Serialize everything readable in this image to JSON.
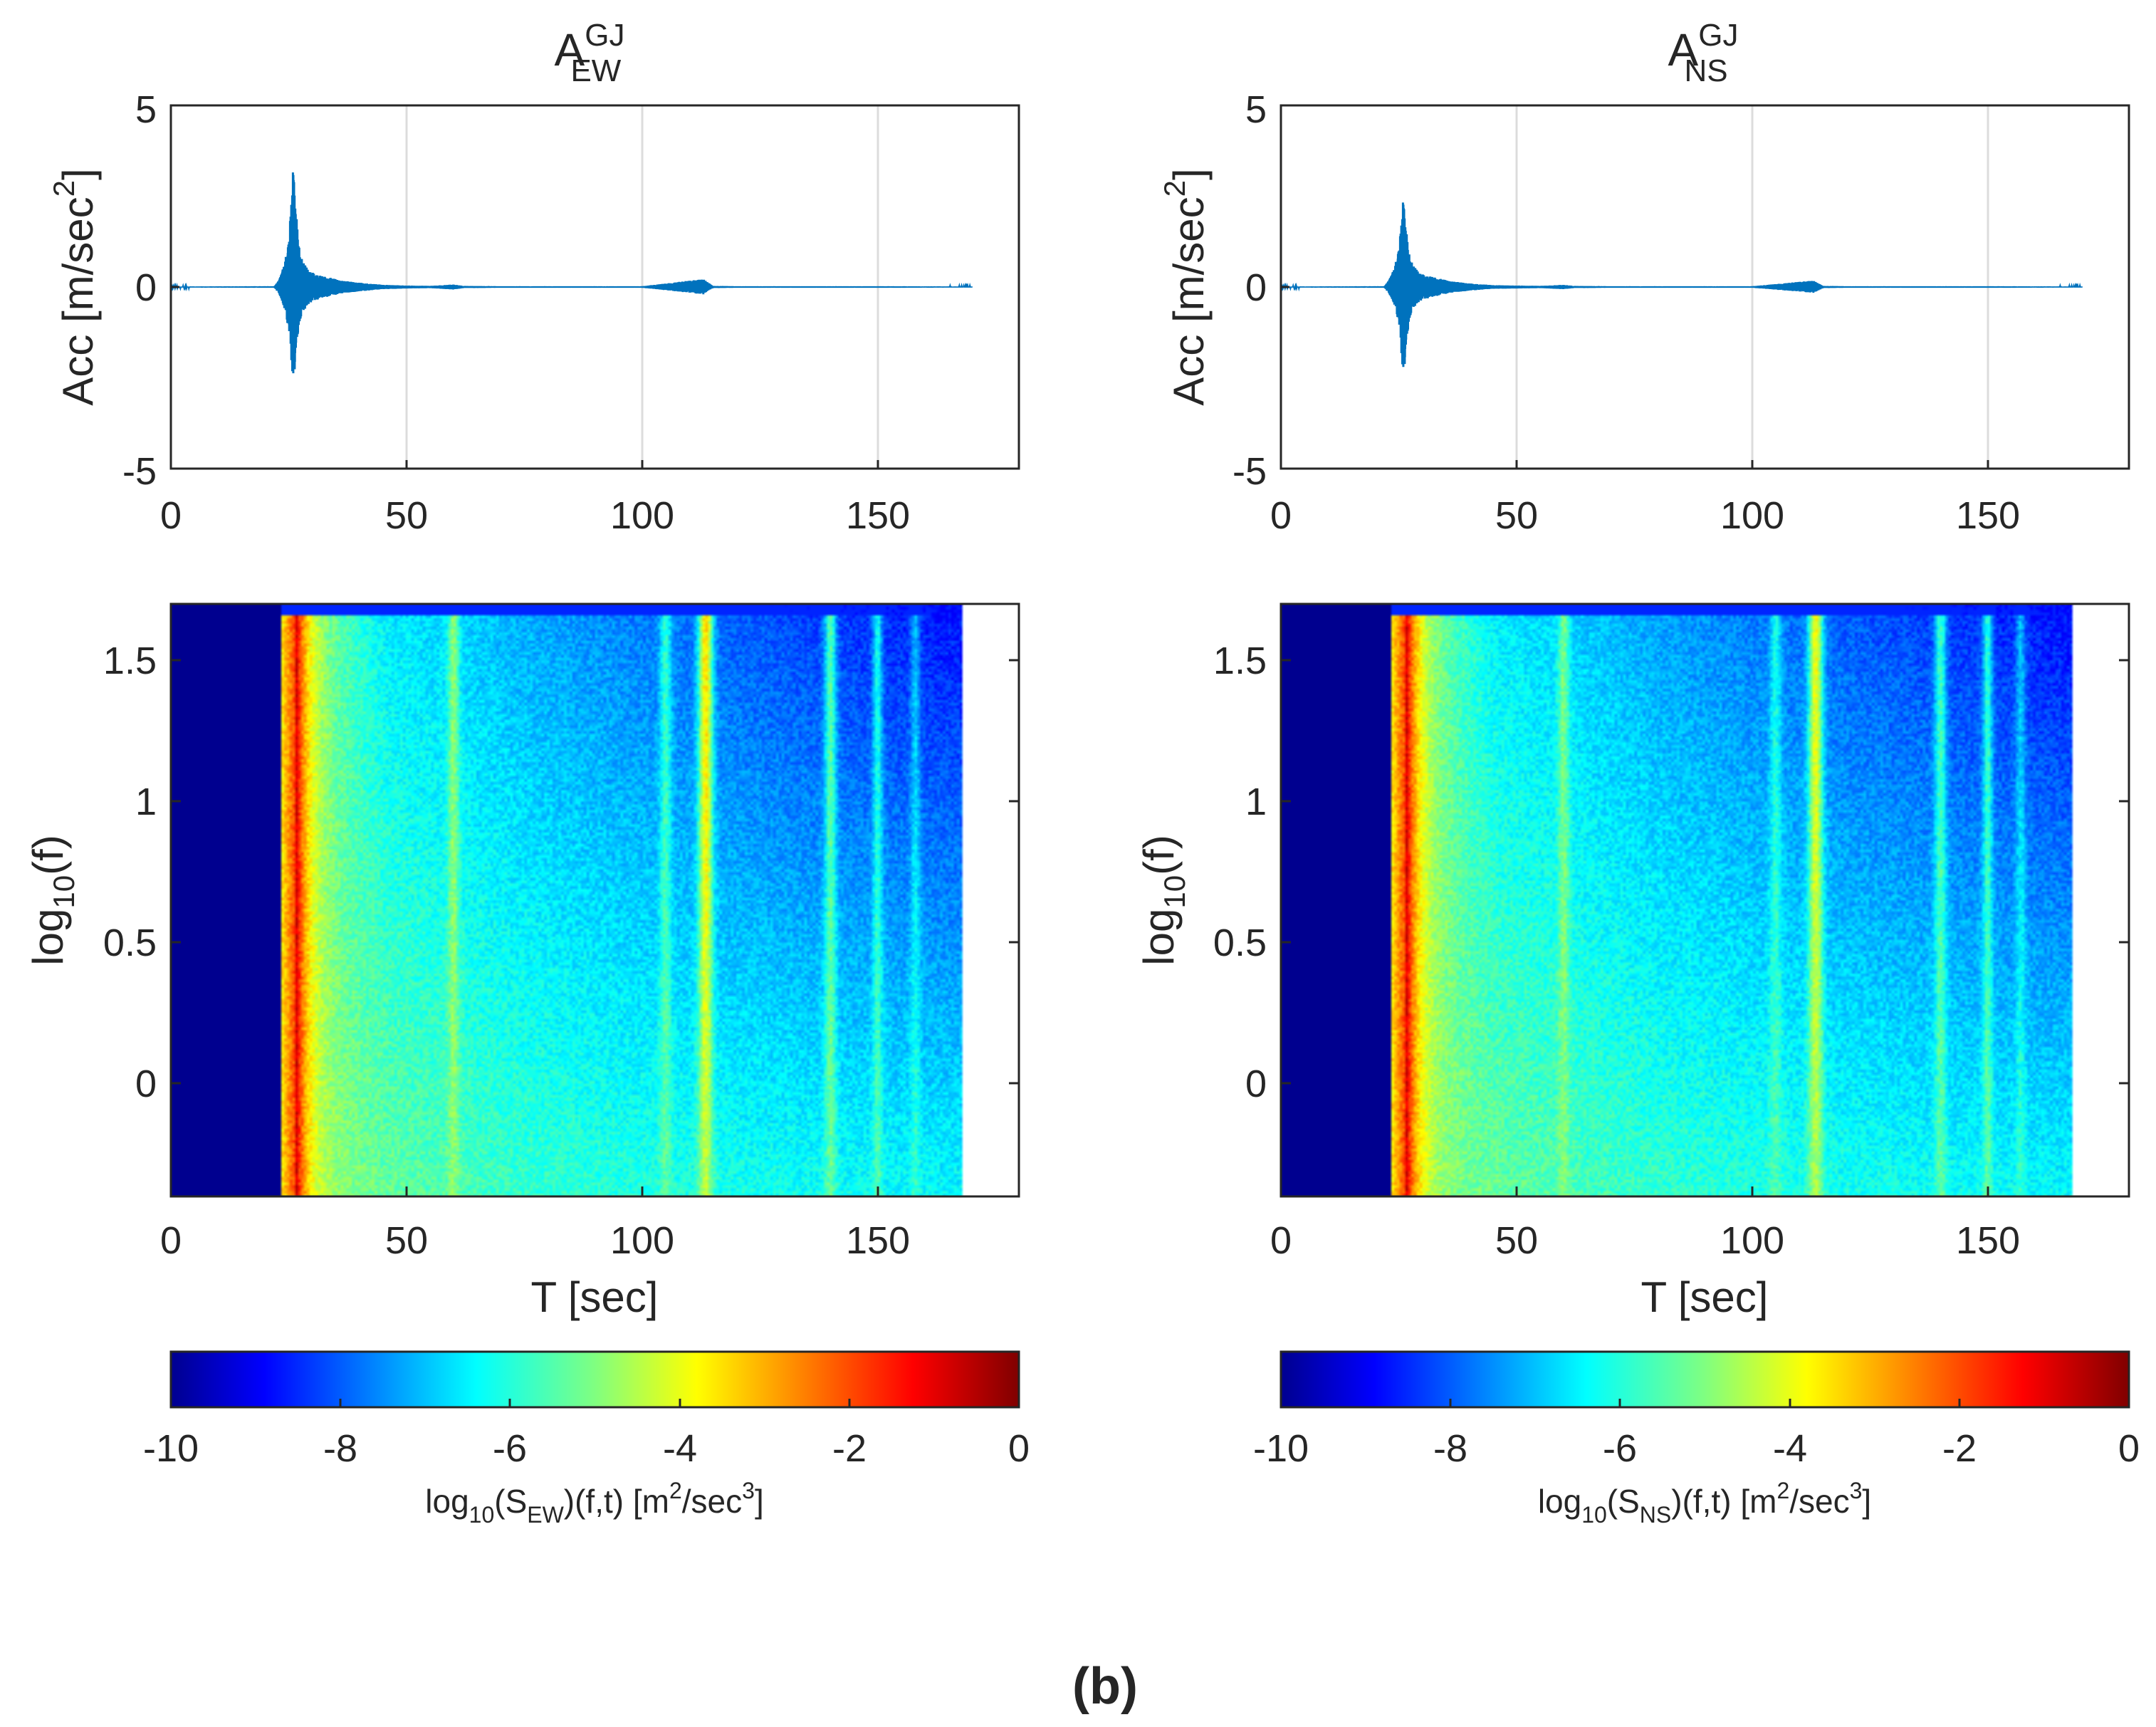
{
  "figure": {
    "panel_label": "(b)"
  },
  "colors": {
    "trace": "#0072BD",
    "axis": "#262626",
    "grid": "#dcdcdc",
    "colormap": [
      "#00008F",
      "#0000FF",
      "#0080FF",
      "#00FFFF",
      "#80FF80",
      "#FFFF00",
      "#FF8000",
      "#FF0000",
      "#800000"
    ]
  },
  "chart_data": [
    {
      "id": "acc-ew",
      "type": "line",
      "title": {
        "main": "A",
        "sup": "GJ",
        "sub": "EW"
      },
      "ylabel": {
        "prefix": "Acc [m/sec",
        "sup": "2",
        "suffix": "]"
      },
      "xlim": [
        0,
        180
      ],
      "ylim": [
        -5,
        5
      ],
      "xticks": [
        "0",
        "50",
        "100",
        "150"
      ],
      "xtick_values": [
        0,
        50,
        100,
        150
      ],
      "yticks": [
        "-5",
        "0",
        "5"
      ],
      "ytick_values": [
        -5,
        0,
        5
      ],
      "grid": "x",
      "series": [
        {
          "name": "EW acceleration",
          "t": [
            0,
            22,
            23,
            24,
            25,
            25.5,
            26,
            26.5,
            27,
            27.5,
            28,
            29,
            30,
            32,
            34,
            36,
            40,
            45,
            50,
            55,
            60,
            62,
            70,
            100,
            113,
            114,
            115,
            120,
            150,
            170
          ],
          "upper": [
            0.01,
            0.02,
            0.2,
            0.6,
            1.2,
            2.4,
            3.4,
            2.2,
            1.4,
            0.9,
            0.7,
            0.5,
            0.4,
            0.3,
            0.25,
            0.18,
            0.12,
            0.06,
            0.04,
            0.03,
            0.07,
            0.03,
            0.02,
            0.02,
            0.22,
            0.12,
            0.03,
            0.02,
            0.02,
            0.01
          ],
          "lower": [
            -0.01,
            -0.02,
            -0.2,
            -0.6,
            -1.2,
            -2.0,
            -2.8,
            -1.9,
            -1.2,
            -0.9,
            -0.7,
            -0.5,
            -0.4,
            -0.3,
            -0.25,
            -0.18,
            -0.12,
            -0.06,
            -0.04,
            -0.03,
            -0.07,
            -0.03,
            -0.02,
            -0.02,
            -0.2,
            -0.1,
            -0.03,
            -0.02,
            -0.02,
            -0.01
          ]
        }
      ]
    },
    {
      "id": "acc-ns",
      "type": "line",
      "title": {
        "main": "A",
        "sup": "GJ",
        "sub": "NS"
      },
      "ylabel": {
        "prefix": "Acc [m/sec",
        "sup": "2",
        "suffix": "]"
      },
      "xlim": [
        0,
        180
      ],
      "ylim": [
        -5,
        5
      ],
      "xticks": [
        "0",
        "50",
        "100",
        "150"
      ],
      "xtick_values": [
        0,
        50,
        100,
        150
      ],
      "yticks": [
        "-5",
        "0",
        "5"
      ],
      "ytick_values": [
        -5,
        0,
        5
      ],
      "grid": "x",
      "series": [
        {
          "name": "NS acceleration",
          "t": [
            0,
            22,
            23,
            24,
            25,
            25.5,
            26,
            26.5,
            27,
            27.5,
            28,
            29,
            30,
            32,
            34,
            36,
            40,
            45,
            50,
            55,
            60,
            62,
            70,
            100,
            113,
            114,
            115,
            120,
            150,
            170
          ],
          "upper": [
            0.01,
            0.02,
            0.2,
            0.5,
            1.0,
            1.8,
            2.5,
            1.7,
            1.1,
            0.8,
            0.6,
            0.45,
            0.35,
            0.28,
            0.22,
            0.16,
            0.1,
            0.05,
            0.04,
            0.03,
            0.06,
            0.03,
            0.02,
            0.02,
            0.18,
            0.1,
            0.03,
            0.02,
            0.02,
            0.01
          ],
          "lower": [
            -0.01,
            -0.02,
            -0.2,
            -0.5,
            -1.0,
            -1.8,
            -2.6,
            -1.8,
            -1.1,
            -0.8,
            -0.6,
            -0.45,
            -0.35,
            -0.28,
            -0.22,
            -0.16,
            -0.1,
            -0.05,
            -0.04,
            -0.03,
            -0.06,
            -0.03,
            -0.02,
            -0.02,
            -0.16,
            -0.1,
            -0.03,
            -0.02,
            -0.02,
            -0.01
          ]
        }
      ]
    },
    {
      "id": "spec-ew",
      "type": "heatmap",
      "xlabel": "T [sec]",
      "ylabel": {
        "prefix": "log",
        "sub": "10",
        "suffix": "(f)"
      },
      "xlim": [
        0,
        180
      ],
      "ylim": [
        -0.4,
        1.7
      ],
      "xticks": [
        "0",
        "50",
        "100",
        "150"
      ],
      "xtick_values": [
        0,
        50,
        100,
        150
      ],
      "yticks": [
        "0",
        "0.5",
        "1",
        "1.5"
      ],
      "ytick_values": [
        0,
        0.5,
        1,
        1.5
      ],
      "data_range_t": [
        1.5,
        168
      ],
      "onset_t": 23.5,
      "peak_t": 26.5,
      "clim": [
        -10,
        0
      ],
      "features": [
        {
          "t": 113.5,
          "strength": 0.45,
          "width": 1.5
        },
        {
          "t": 105,
          "strength": 0.18,
          "width": 1.2
        },
        {
          "t": 60,
          "strength": 0.18,
          "width": 1.2
        },
        {
          "t": 140,
          "strength": 0.28,
          "width": 1.2
        },
        {
          "t": 150,
          "strength": 0.22,
          "width": 1.0
        },
        {
          "t": 158,
          "strength": 0.15,
          "width": 1.0
        }
      ],
      "colorbar": {
        "ticks": [
          "-10",
          "-8",
          "-6",
          "-4",
          "-2",
          "0"
        ],
        "tick_values": [
          -10,
          -8,
          -6,
          -4,
          -2,
          0
        ],
        "label": {
          "a": "log",
          "b": "10",
          "c": "(S",
          "d": "EW",
          "e": ")(f,t) [m",
          "f": "2",
          "g": "/sec",
          "h": "3",
          "i": "]"
        }
      }
    },
    {
      "id": "spec-ns",
      "type": "heatmap",
      "xlabel": "T [sec]",
      "ylabel": {
        "prefix": "log",
        "sub": "10",
        "suffix": "(f)"
      },
      "xlim": [
        0,
        180
      ],
      "ylim": [
        -0.4,
        1.7
      ],
      "xticks": [
        "0",
        "50",
        "100",
        "150"
      ],
      "xtick_values": [
        0,
        50,
        100,
        150
      ],
      "yticks": [
        "0",
        "0.5",
        "1",
        "1.5"
      ],
      "ytick_values": [
        0,
        0.5,
        1,
        1.5
      ],
      "data_range_t": [
        1.5,
        168
      ],
      "onset_t": 23.5,
      "peak_t": 26.5,
      "clim": [
        -10,
        0
      ],
      "features": [
        {
          "t": 113.5,
          "strength": 0.4,
          "width": 1.5
        },
        {
          "t": 105,
          "strength": 0.15,
          "width": 1.2
        },
        {
          "t": 60,
          "strength": 0.16,
          "width": 1.2
        },
        {
          "t": 140,
          "strength": 0.25,
          "width": 1.2
        },
        {
          "t": 150,
          "strength": 0.25,
          "width": 1.0
        },
        {
          "t": 157,
          "strength": 0.15,
          "width": 1.0
        }
      ],
      "colorbar": {
        "ticks": [
          "-10",
          "-8",
          "-6",
          "-4",
          "-2",
          "0"
        ],
        "tick_values": [
          -10,
          -8,
          -6,
          -4,
          -2,
          0
        ],
        "label": {
          "a": "log",
          "b": "10",
          "c": "(S",
          "d": "NS",
          "e": ")(f,t) [m",
          "f": "2",
          "g": "/sec",
          "h": "3",
          "i": "]"
        }
      }
    }
  ]
}
